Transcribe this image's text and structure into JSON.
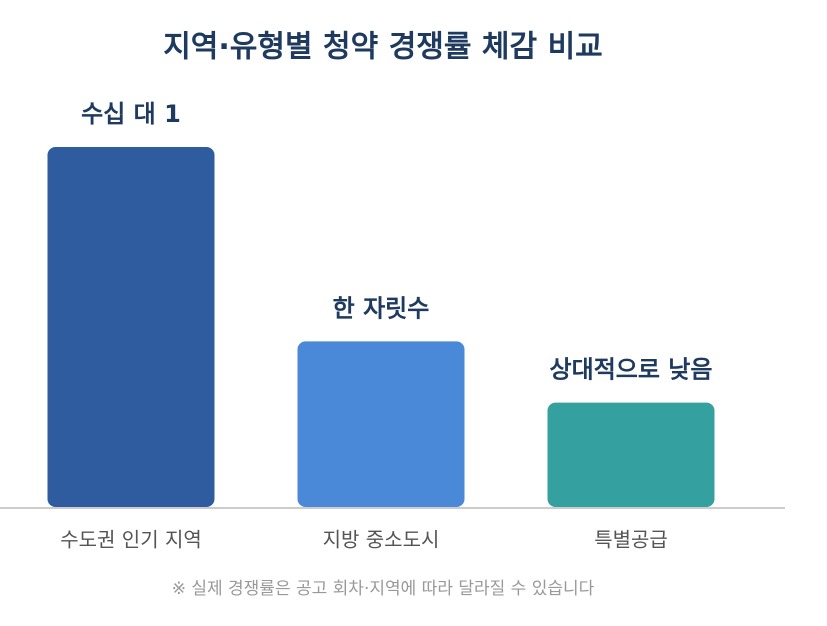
{
  "chart_data": {
    "type": "bar",
    "title": "지역·유형별 청약 경쟁률 체감 비교",
    "categories": [
      "수도권 인기 지역",
      "지방 중소도시",
      "특별공급"
    ],
    "values": [
      100,
      46,
      29
    ],
    "bar_labels": [
      "수십 대 1",
      "한 자릿수",
      "상대적으로 낮음"
    ],
    "colors": [
      "#2e5c9e",
      "#4a89d8",
      "#35a0a0"
    ],
    "ylim": [
      0,
      100
    ],
    "footnote": "※ 실제 경쟁률은 공고 회차·지역에 따라 달라질 수 있습니다"
  }
}
